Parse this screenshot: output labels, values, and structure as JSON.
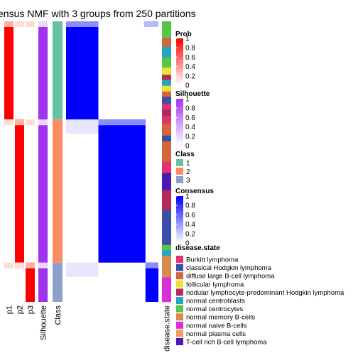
{
  "chart_data": {
    "type": "heatmap",
    "title": "ensus NMF with 3 groups from 250 partitions",
    "column_labels": [
      "p1",
      "p2",
      "p3",
      "Silhouette",
      "Class",
      "",
      "disease.state"
    ],
    "consensus_blocks": [
      {
        "class": 1,
        "fraction": 0.35
      },
      {
        "class": 2,
        "fraction": 0.51
      },
      {
        "class": 3,
        "fraction": 0.14
      }
    ],
    "legends": {
      "prob": {
        "title": "Prob",
        "ticks": [
          "1",
          "0.8",
          "0.6",
          "0.4",
          "0.2",
          "0"
        ],
        "colors": [
          "#ff0000",
          "#ffffff"
        ]
      },
      "silhouette": {
        "title": "Silhouette",
        "ticks": [
          "1",
          "0.8",
          "0.6",
          "0.4",
          "0.2",
          "0"
        ],
        "colors": [
          "#a033ee",
          "#ffffff"
        ]
      },
      "class": {
        "title": "Class",
        "entries": [
          {
            "label": "1",
            "color": "#66c2a5"
          },
          {
            "label": "2",
            "color": "#fc8d62"
          },
          {
            "label": "3",
            "color": "#8da0cb"
          }
        ]
      },
      "consensus": {
        "title": "Consensus",
        "ticks": [
          "1",
          "0.8",
          "0.6",
          "0.4",
          "0.2",
          "0"
        ],
        "colors": [
          "#0000ff",
          "#ffffff"
        ]
      },
      "disease_state": {
        "title": "disease.state",
        "entries": [
          {
            "label": "Burkitt lymphoma",
            "color": "#e0336f"
          },
          {
            "label": "classical Hodgkin lymphoma",
            "color": "#3a4fa8"
          },
          {
            "label": "diffuse large B-cell lymphoma",
            "color": "#d2663c"
          },
          {
            "label": "follicular lymphoma",
            "color": "#e8e433"
          },
          {
            "label": "nodular lymphocyte-predominant Hodgkin lymphoma",
            "color": "#b22a5a"
          },
          {
            "label": "normal centroblasts",
            "color": "#27a3c4"
          },
          {
            "label": "normal centrocytes",
            "color": "#57c546"
          },
          {
            "label": "normal memory B-cells",
            "color": "#d88a4e"
          },
          {
            "label": "normal naive B-cells",
            "color": "#d630d6"
          },
          {
            "label": "normal plasma cells",
            "color": "#f79a5a"
          },
          {
            "label": "T-cell rich B-cell lymphoma",
            "color": "#4a19b8"
          }
        ]
      }
    }
  }
}
